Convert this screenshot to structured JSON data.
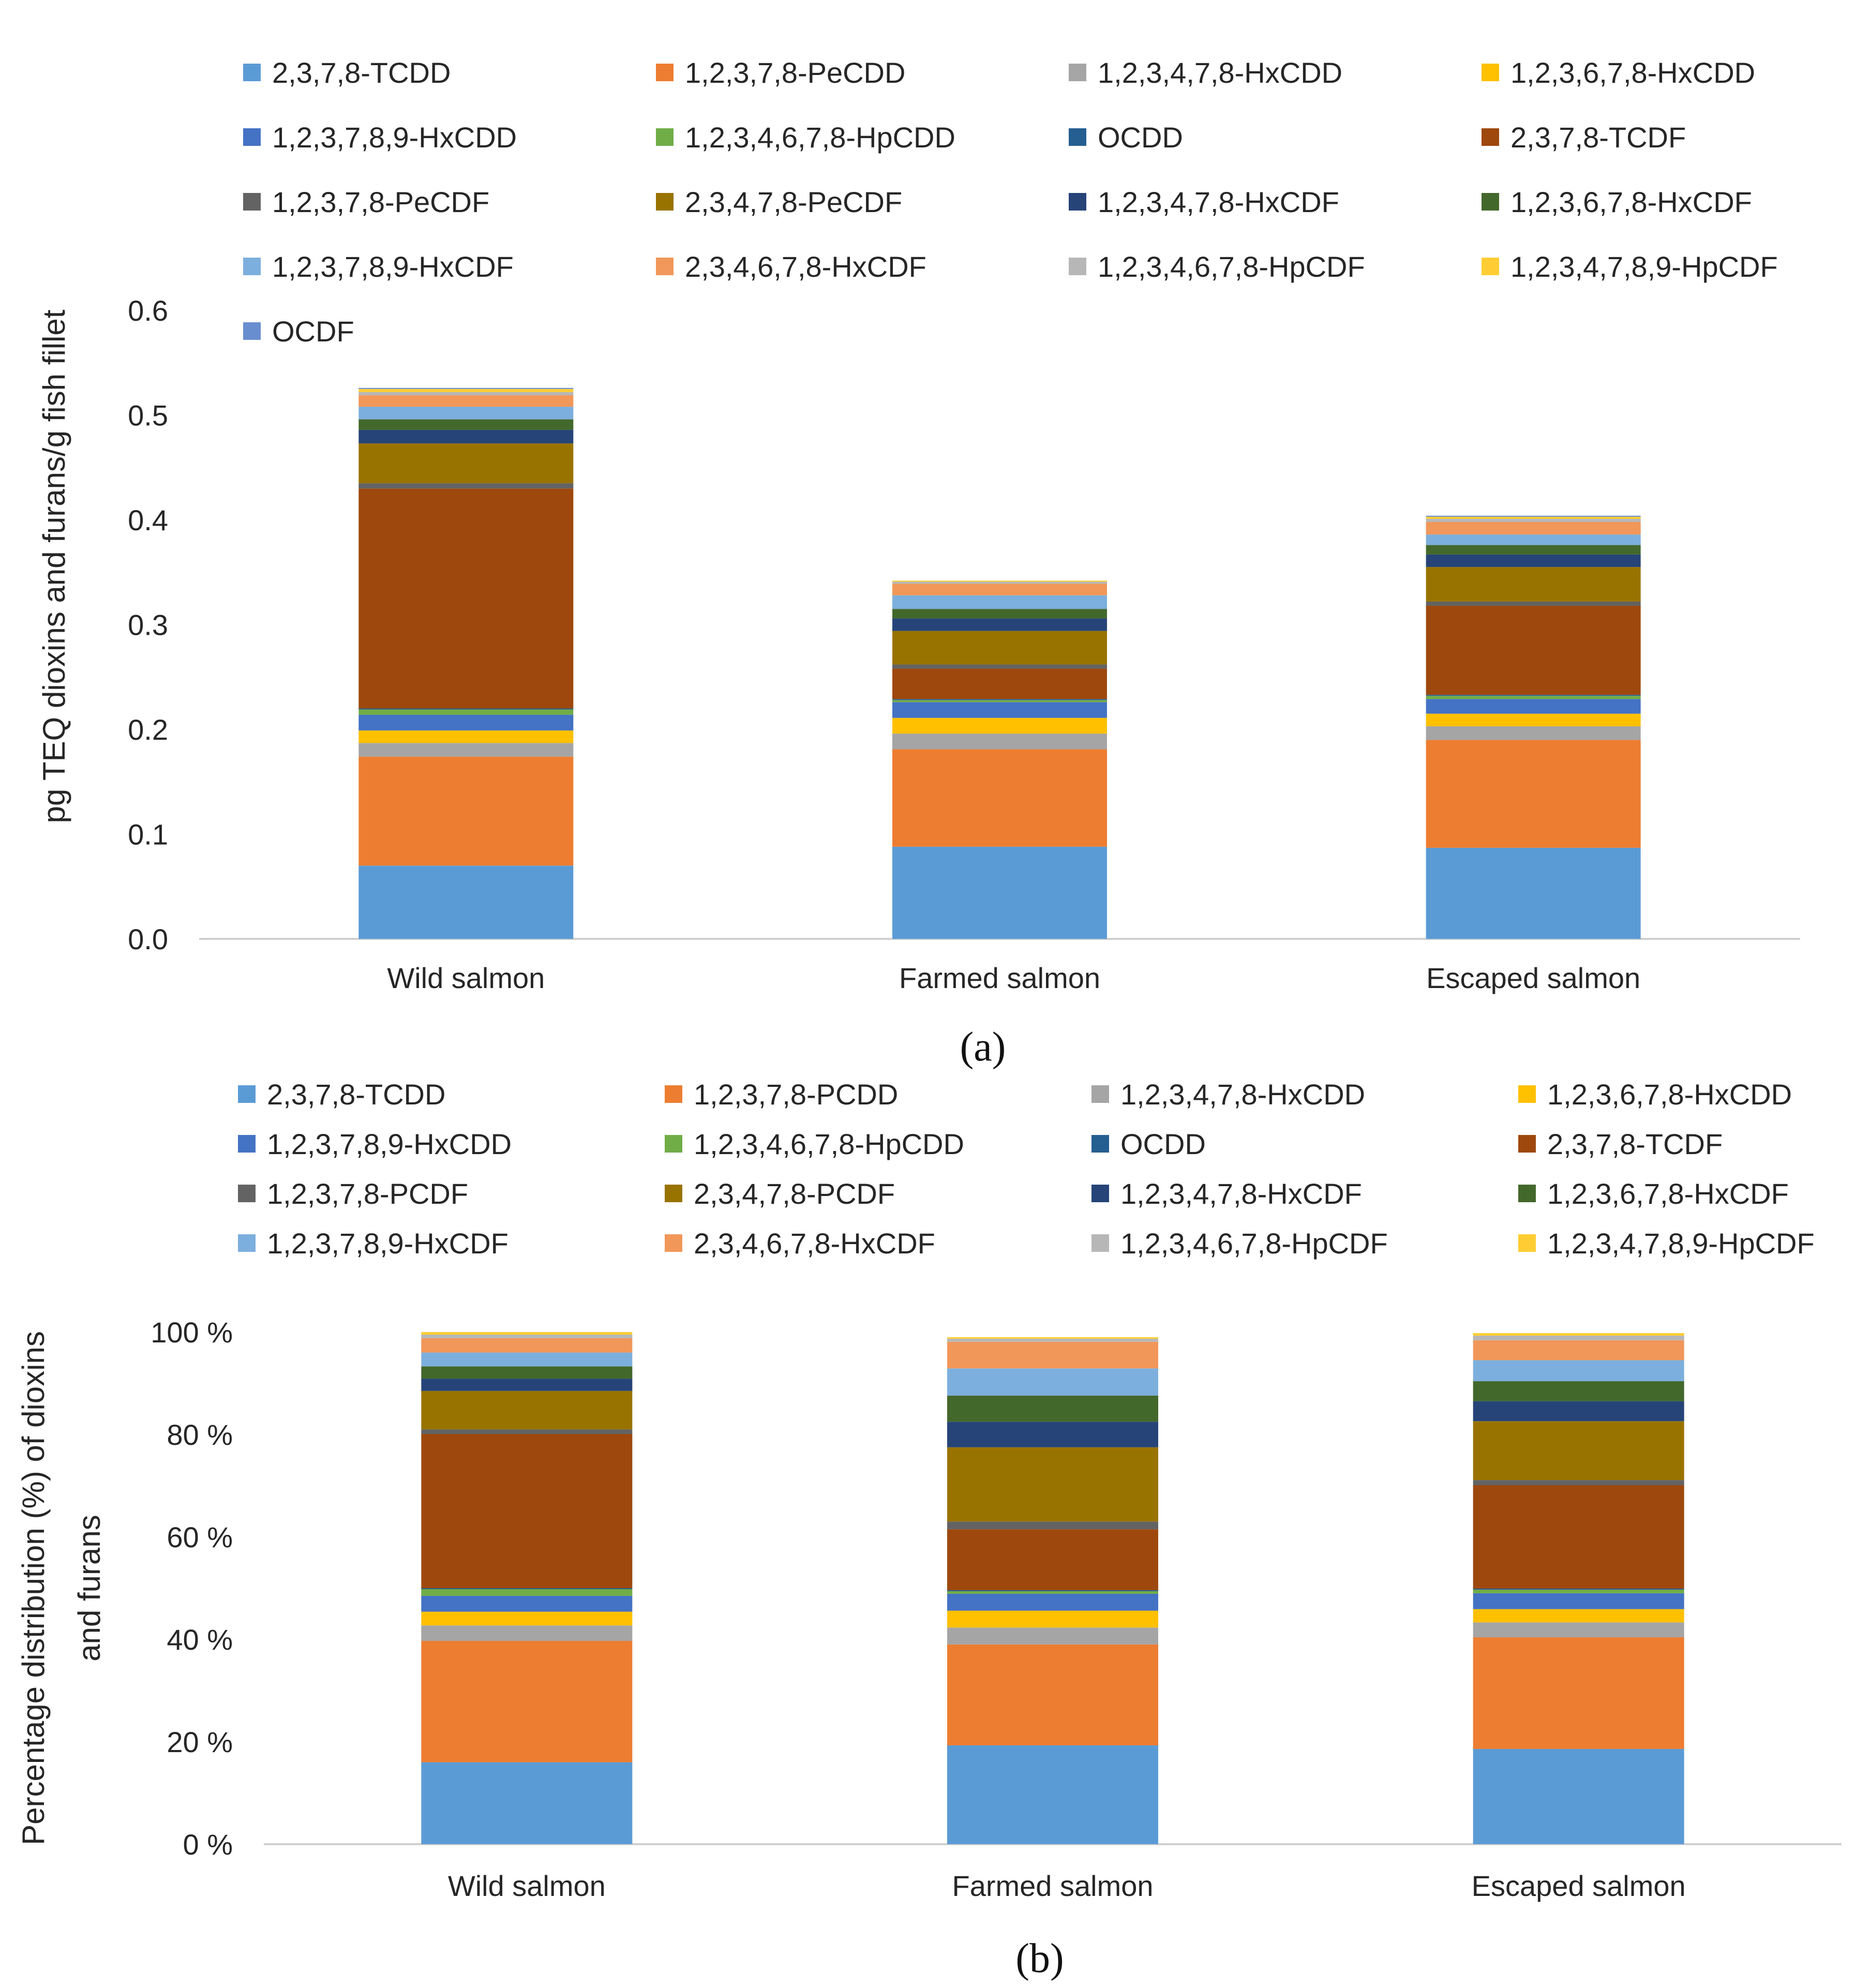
{
  "chart_data": [
    {
      "type": "bar",
      "stacked": true,
      "panel_label": "(a)",
      "ylabel": "pg TEQ dioxins and furans/g fish fillet",
      "xlabel": "",
      "ylim": [
        0,
        0.6
      ],
      "yticks": [
        "0.0",
        "0.1",
        "0.2",
        "0.3",
        "0.4",
        "0.5",
        "0.6"
      ],
      "legend_position": "top",
      "categories": [
        "Wild salmon",
        "Farmed salmon",
        "Escaped salmon"
      ],
      "series": [
        {
          "name": "2,3,7,8-TCDD",
          "color": "#5B9BD5",
          "values": [
            0.07,
            0.088,
            0.087
          ]
        },
        {
          "name": "1,2,3,7,8-PeCDD",
          "color": "#ED7D31",
          "values": [
            0.104,
            0.093,
            0.103
          ]
        },
        {
          "name": "1,2,3,4,7,8-HxCDD",
          "color": "#A5A5A5",
          "values": [
            0.013,
            0.015,
            0.013
          ]
        },
        {
          "name": "1,2,3,6,7,8-HxCDD",
          "color": "#FFC000",
          "values": [
            0.012,
            0.015,
            0.012
          ]
        },
        {
          "name": "1,2,3,7,8,9-HxCDD",
          "color": "#4472C4",
          "values": [
            0.015,
            0.015,
            0.014
          ]
        },
        {
          "name": "1,2,3,4,6,7,8-HpCDD",
          "color": "#70AD47",
          "values": [
            0.005,
            0.002,
            0.003
          ]
        },
        {
          "name": "OCDD",
          "color": "#255E91",
          "values": [
            0.001,
            0.001,
            0.001
          ]
        },
        {
          "name": "2,3,7,8-TCDF",
          "color": "#9E480E",
          "values": [
            0.21,
            0.029,
            0.085
          ]
        },
        {
          "name": "1,2,3,7,8-PeCDF",
          "color": "#636363",
          "values": [
            0.005,
            0.004,
            0.004
          ]
        },
        {
          "name": "2,3,4,7,8-PeCDF",
          "color": "#997300",
          "values": [
            0.038,
            0.032,
            0.033
          ]
        },
        {
          "name": "1,2,3,4,7,8-HxCDF",
          "color": "#264478",
          "values": [
            0.013,
            0.012,
            0.012
          ]
        },
        {
          "name": "1,2,3,6,7,8-HxCDF",
          "color": "#43682B",
          "values": [
            0.01,
            0.009,
            0.009
          ]
        },
        {
          "name": "1,2,3,7,8,9-HxCDF",
          "color": "#7CAFDD",
          "values": [
            0.012,
            0.013,
            0.01
          ]
        },
        {
          "name": "2,3,4,6,7,8-HxCDF",
          "color": "#F1975A",
          "values": [
            0.011,
            0.011,
            0.012
          ]
        },
        {
          "name": "1,2,3,4,6,7,8-HpCDF",
          "color": "#B7B7B7",
          "values": [
            0.003,
            0.002,
            0.003
          ]
        },
        {
          "name": "1,2,3,4,7,8,9-HpCDF",
          "color": "#FFCD33",
          "values": [
            0.003,
            0.001,
            0.002
          ]
        },
        {
          "name": "OCDF",
          "color": "#698ED0",
          "values": [
            0.001,
            0.0,
            0.001
          ]
        }
      ]
    },
    {
      "type": "bar",
      "stacked": true,
      "panel_label": "(b)",
      "ylabel_lines": [
        "Percentage distribution (%) of dioxins",
        "and furans"
      ],
      "xlabel": "",
      "ylim": [
        0,
        100
      ],
      "yticks": [
        "0 %",
        "20 %",
        "40 %",
        "60 %",
        "80 %",
        "100 %"
      ],
      "legend_position": "top",
      "categories": [
        "Wild salmon",
        "Farmed salmon",
        "Escaped salmon"
      ],
      "series": [
        {
          "name": "2,3,7,8-TCDD",
          "color": "#5B9BD5",
          "values": [
            16,
            19.3,
            18.6
          ]
        },
        {
          "name": "1,2,3,7,8-PCDD",
          "color": "#ED7D31",
          "values": [
            23.7,
            19.7,
            21.8
          ]
        },
        {
          "name": "1,2,3,4,7,8-HxCDD",
          "color": "#A5A5A5",
          "values": [
            3.0,
            3.3,
            2.9
          ]
        },
        {
          "name": "1,2,3,6,7,8-HxCDD",
          "color": "#FFC000",
          "values": [
            2.7,
            3.3,
            2.6
          ]
        },
        {
          "name": "1,2,3,7,8,9-HxCDD",
          "color": "#4472C4",
          "values": [
            3.1,
            3.3,
            3.1
          ]
        },
        {
          "name": "1,2,3,4,6,7,8-HpCDD",
          "color": "#70AD47",
          "values": [
            1.3,
            0.5,
            0.7
          ]
        },
        {
          "name": "OCDD",
          "color": "#255E91",
          "values": [
            0.2,
            0.2,
            0.2
          ]
        },
        {
          "name": "2,3,7,8-TCDF",
          "color": "#9E480E",
          "values": [
            30.1,
            11.9,
            20.2
          ]
        },
        {
          "name": "1,2,3,7,8-PCDF",
          "color": "#636363",
          "values": [
            0.9,
            1.5,
            1.0
          ]
        },
        {
          "name": "2,3,4,7,8-PCDF",
          "color": "#997300",
          "values": [
            7.5,
            14.5,
            11.5
          ]
        },
        {
          "name": "1,2,3,4,7,8-HxCDF",
          "color": "#264478",
          "values": [
            2.4,
            5.0,
            3.9
          ]
        },
        {
          "name": "1,2,3,6,7,8-HxCDF",
          "color": "#43682B",
          "values": [
            2.4,
            5.1,
            3.9
          ]
        },
        {
          "name": "1,2,3,7,8,9-HxCDF",
          "color": "#7CAFDD",
          "values": [
            2.7,
            5.3,
            4.1
          ]
        },
        {
          "name": "2,3,4,6,7,8-HxCDF",
          "color": "#F1975A",
          "values": [
            2.8,
            5.2,
            3.9
          ]
        },
        {
          "name": "1,2,3,4,6,7,8-HpCDF",
          "color": "#B7B7B7",
          "values": [
            0.7,
            0.6,
            0.9
          ]
        },
        {
          "name": "1,2,3,4,7,8,9-HpCDF",
          "color": "#FFCD33",
          "values": [
            0.5,
            0.3,
            0.5
          ]
        }
      ]
    }
  ]
}
